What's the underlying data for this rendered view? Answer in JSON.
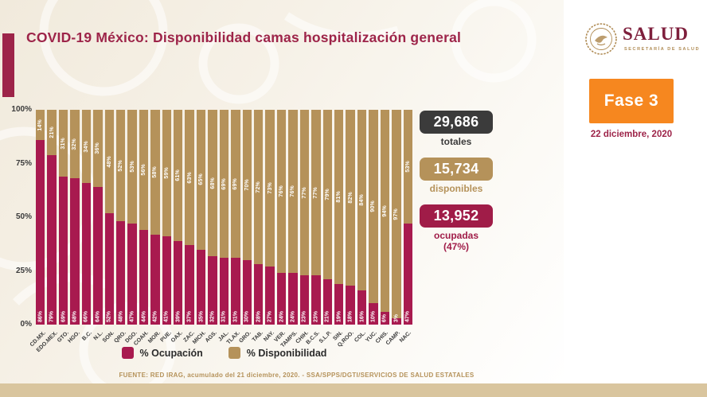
{
  "header": {
    "title": "COVID-19 México: Disponibilidad camas hospitalización general",
    "accent_color": "#9D2449",
    "logo": {
      "word": "SALUD",
      "subtitle": "SECRETARÍA DE SALUD"
    },
    "phase": {
      "label": "Fase 3",
      "color": "#F6871F"
    },
    "date": "22 diciembre, 2020"
  },
  "chart_data": {
    "type": "bar",
    "stacked": true,
    "grid": false,
    "legend_position": "bottom",
    "ylim": [
      0,
      100
    ],
    "yticks": [
      "100%",
      "75%",
      "50%",
      "25%",
      "0%"
    ],
    "categories": [
      "CD.MX.",
      "EDO.MEX.",
      "GTO.",
      "HGO.",
      "B.C.",
      "N.L.",
      "SON.",
      "QRO.",
      "DGO.",
      "COAH.",
      "MOR.",
      "PUE.",
      "OAX.",
      "ZAC.",
      "MICH.",
      "AGS.",
      "JAL.",
      "TLAX.",
      "GRO.",
      "TAB.",
      "NAY.",
      "VER.",
      "TAMPS.",
      "CHIH.",
      "B.C.S.",
      "S.L.P.",
      "SIN.",
      "Q.ROO.",
      "COL.",
      "YUC.",
      "CHIS.",
      "CAMP.",
      "NAC."
    ],
    "series": [
      {
        "name": "% Ocupación",
        "color": "#A81A4F",
        "values": [
          86,
          79,
          69,
          68,
          66,
          64,
          52,
          48,
          47,
          44,
          42,
          41,
          39,
          37,
          35,
          32,
          31,
          31,
          30,
          28,
          27,
          24,
          24,
          23,
          23,
          21,
          19,
          18,
          16,
          10,
          6,
          3,
          47
        ]
      },
      {
        "name": "% Disponibilidad",
        "color": "#B5925A",
        "values": [
          14,
          21,
          31,
          32,
          34,
          36,
          48,
          52,
          53,
          56,
          58,
          59,
          61,
          63,
          65,
          68,
          69,
          69,
          70,
          72,
          73,
          76,
          76,
          77,
          77,
          79,
          81,
          82,
          84,
          90,
          94,
          97,
          53
        ]
      }
    ]
  },
  "stats": [
    {
      "value": "29,686",
      "label": "totales",
      "box_color": "#3B3B3B",
      "label_color": "#3B3B3B",
      "sublabel": ""
    },
    {
      "value": "15,734",
      "label": "disponibles",
      "box_color": "#B5925A",
      "label_color": "#B5925A",
      "sublabel": ""
    },
    {
      "value": "13,952",
      "label": "ocupadas",
      "box_color": "#A01C48",
      "label_color": "#A01C48",
      "sublabel": "(47%)"
    }
  ],
  "footer": {
    "source": "FUENTE: RED IRAG, acumulado del 21 diciembre, 2020. -  SSA/SPPS/DGTI/SERVICIOS DE SALUD ESTATALES"
  }
}
